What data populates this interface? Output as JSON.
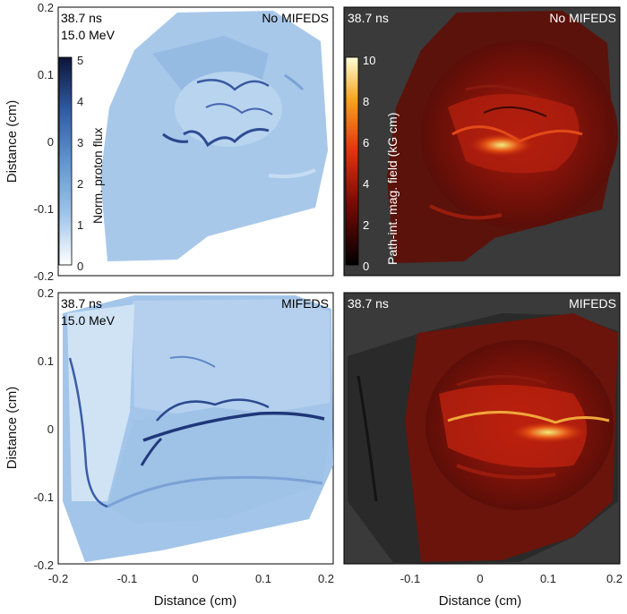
{
  "panels": [
    {
      "time": "38.7 ns",
      "energy": "15.0 MeV",
      "condition": "No MIFEDS"
    },
    {
      "time": "38.7 ns",
      "energy": "",
      "condition": "No MIFEDS"
    },
    {
      "time": "38.7 ns",
      "energy": "15.0 MeV",
      "condition": "MIFEDS"
    },
    {
      "time": "38.7 ns",
      "energy": "",
      "condition": "MIFEDS"
    }
  ],
  "axes": {
    "xlabel": "Distance (cm)",
    "ylabel": "Distance (cm)",
    "left_xticks": [
      "-0.2",
      "-0.1",
      "0",
      "0.1",
      "0.2"
    ],
    "right_xticks": [
      "-0.1",
      "0",
      "0.1",
      "0.2"
    ],
    "yticks": [
      "0.2",
      "0.1",
      "0",
      "-0.1",
      "-0.2"
    ]
  },
  "colorbars": {
    "flux": {
      "label": "Norm. proton flux",
      "ticks": [
        "5",
        "4",
        "3",
        "2",
        "1",
        "0"
      ],
      "range": [
        0,
        5
      ]
    },
    "field": {
      "label": "Path-int. mag. field (kG cm)",
      "ticks": [
        "10",
        "8",
        "6",
        "4",
        "2",
        "0"
      ],
      "range": [
        0,
        10
      ]
    }
  },
  "colors": {
    "flux_background": "#ffffff",
    "flux_light": "#a9c9ea",
    "flux_dark": "#1c2f6e",
    "field_background": "#3a3a3a",
    "field_dark": "#3c0b08",
    "field_mid": "#c21e10",
    "field_hot": "#fff07a"
  }
}
